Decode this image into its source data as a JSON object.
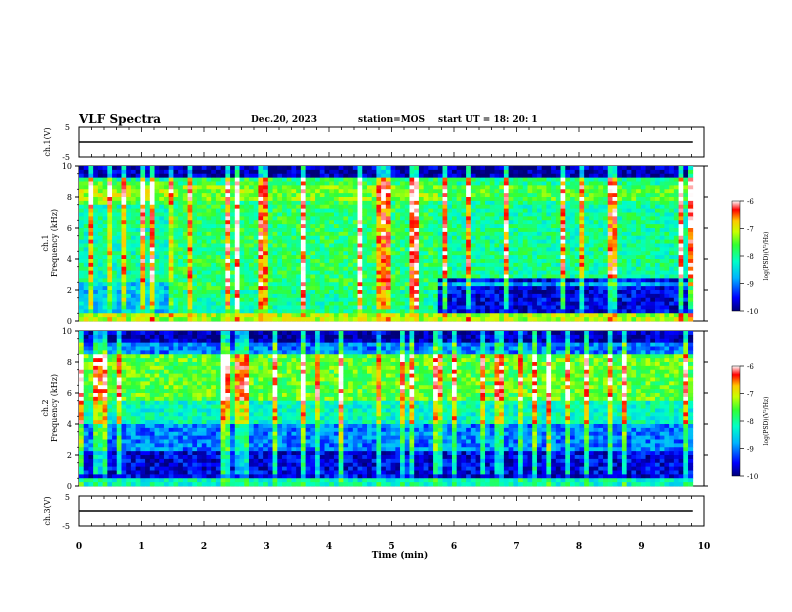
{
  "header": {
    "title": "VLF Spectra",
    "date": "Dec.20, 2023",
    "station": "station=MOS",
    "start": "start  UT =   18: 20: 1"
  },
  "chart_data": [
    {
      "type": "line",
      "id": "ch1-voltage",
      "ylabel": "ch.1(V)",
      "ylim": [
        -5,
        5
      ],
      "yticks": [
        "5",
        "-5"
      ],
      "xlim": [
        0,
        10
      ],
      "series": [
        {
          "x": [
            0,
            9.82
          ],
          "values": [
            0,
            0
          ]
        }
      ]
    },
    {
      "type": "heatmap",
      "id": "ch1-spectrogram",
      "ylabel": "Frequency (kHz)",
      "channel_label": "ch.1",
      "xlim": [
        0,
        9.82
      ],
      "ylim": [
        0,
        10
      ],
      "yticks": [
        "0",
        "2",
        "4",
        "6",
        "8",
        "10"
      ],
      "colorbar": {
        "label": "log(PSD)(V²/Hz)",
        "range": [
          -10,
          -6
        ],
        "ticks": [
          "-6",
          "-7",
          "-8",
          "-9",
          "-10"
        ]
      }
    },
    {
      "type": "heatmap",
      "id": "ch2-spectrogram",
      "ylabel": "Frequency (kHz)",
      "channel_label": "ch.2",
      "xlim": [
        0,
        9.82
      ],
      "ylim": [
        0,
        10
      ],
      "yticks": [
        "0",
        "2",
        "4",
        "6",
        "8",
        "10"
      ],
      "colorbar": {
        "label": "log(PSD)(V²/Hz)",
        "range": [
          -10,
          -6
        ],
        "ticks": [
          "-6",
          "-7",
          "-8",
          "-9",
          "-10"
        ]
      }
    },
    {
      "type": "line",
      "id": "ch3-voltage",
      "ylabel": "ch.3(V)",
      "ylim": [
        -5,
        5
      ],
      "yticks": [
        "5",
        "-5"
      ],
      "xlim": [
        0,
        10
      ],
      "xlabel": "Time  (min)",
      "xticks": [
        "0",
        "1",
        "2",
        "3",
        "4",
        "5",
        "6",
        "7",
        "8",
        "9",
        "10"
      ],
      "series": [
        {
          "x": [
            0,
            9.82
          ],
          "values": [
            0,
            0
          ]
        }
      ]
    }
  ]
}
